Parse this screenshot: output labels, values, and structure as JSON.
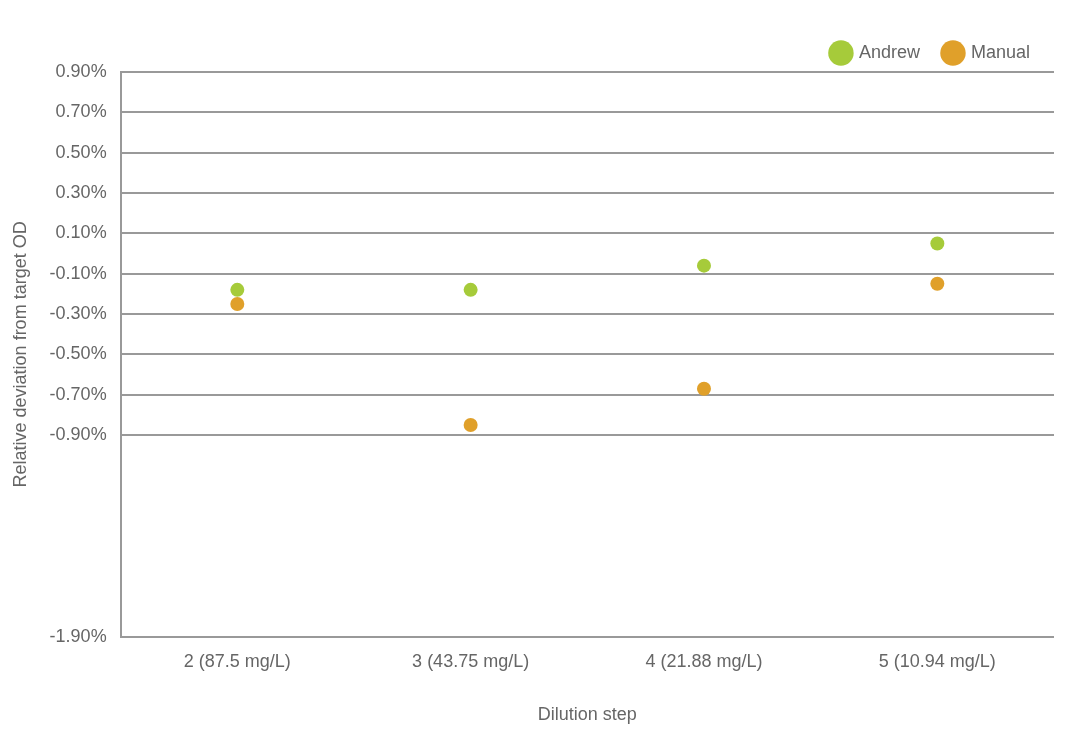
{
  "chart_data": {
    "type": "scatter",
    "x_label": "Dilution step",
    "y_label": "Relative deviation from target OD",
    "categories": [
      "2 (87.5 mg/L)",
      "3 (43.75 mg/L)",
      "4 (21.88 mg/L)",
      "5 (10.94 mg/L)"
    ],
    "series": [
      {
        "name": "Andrew",
        "color": "#a6cb3a",
        "marker": "circle",
        "values": [
          -0.18,
          -0.18,
          -0.06,
          0.05
        ]
      },
      {
        "name": "Manual",
        "color": "#e0a02a",
        "marker": "circle",
        "values": [
          -0.25,
          -0.85,
          -0.67,
          -0.15
        ]
      }
    ],
    "ylim": [
      -1.9,
      0.9
    ],
    "yticks": [
      {
        "value": -1.9,
        "label": "-1.90%"
      },
      {
        "value": -0.9,
        "label": "-0.90%"
      },
      {
        "value": -0.7,
        "label": "-0.70%"
      },
      {
        "value": -0.5,
        "label": "-0.50%"
      },
      {
        "value": -0.3,
        "label": "-0.30%"
      },
      {
        "value": -0.1,
        "label": "-0.10%"
      },
      {
        "value": 0.1,
        "label": "0.10%"
      },
      {
        "value": 0.3,
        "label": "0.30%"
      },
      {
        "value": 0.5,
        "label": "0.50%"
      },
      {
        "value": 0.7,
        "label": "0.70%"
      },
      {
        "value": 0.9,
        "label": "0.90%"
      }
    ],
    "grid": true,
    "legend": "top-right"
  }
}
